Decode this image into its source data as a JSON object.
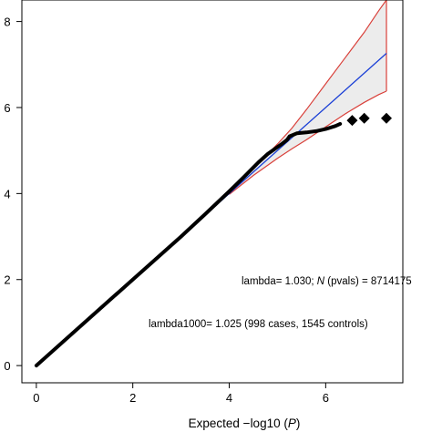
{
  "chart_data": {
    "type": "scatter",
    "title": "",
    "xlabel": "",
    "ylabel": "",
    "xlabel_parts": [
      "Expected −log10 (",
      "P",
      ")"
    ],
    "xlim": [
      -0.3,
      7.6
    ],
    "ylim": [
      -0.4,
      8.5
    ],
    "xticks": [
      0,
      2,
      4,
      6
    ],
    "yticks": [
      0,
      2,
      4,
      6,
      8
    ],
    "grid": false,
    "colors": {
      "points": "#000000",
      "expected_line": "#1a3fd6",
      "confidence_band": "#d9403a",
      "band_fill": "#ececec"
    },
    "expected_line": {
      "x": [
        0,
        7.26
      ],
      "y": [
        0,
        7.26
      ]
    },
    "confidence_band": {
      "x": [
        4.0,
        4.5,
        5.0,
        5.3,
        5.6,
        6.0,
        6.4,
        6.8,
        7.1,
        7.26
      ],
      "upper": [
        4.03,
        4.58,
        5.15,
        5.52,
        5.95,
        6.55,
        7.15,
        7.75,
        8.25,
        8.5
      ],
      "lower": [
        3.98,
        4.42,
        4.82,
        5.04,
        5.25,
        5.55,
        5.85,
        6.12,
        6.3,
        6.38
      ]
    },
    "observed_curve": {
      "x": [
        0,
        1,
        2,
        3,
        3.5,
        4.0,
        4.3,
        4.6,
        4.8,
        5.0,
        5.1,
        5.2,
        5.25,
        5.4,
        5.6,
        5.8,
        6.0,
        6.2,
        6.3
      ],
      "y": [
        0,
        1,
        2,
        3,
        3.52,
        4.05,
        4.38,
        4.72,
        4.92,
        5.08,
        5.16,
        5.25,
        5.33,
        5.4,
        5.42,
        5.45,
        5.5,
        5.57,
        5.62
      ]
    },
    "observed_points": {
      "x": [
        6.55,
        6.8,
        7.26
      ],
      "y": [
        5.7,
        5.75,
        5.75
      ]
    },
    "annotations": {
      "lambda_prefix": "lambda= 1.030; ",
      "lambda_N": "N",
      "lambda_suffix": " (pvals) = 8714175",
      "lambda1000": "lambda1000= 1.025 (998 cases, 1545 controls)"
    }
  }
}
